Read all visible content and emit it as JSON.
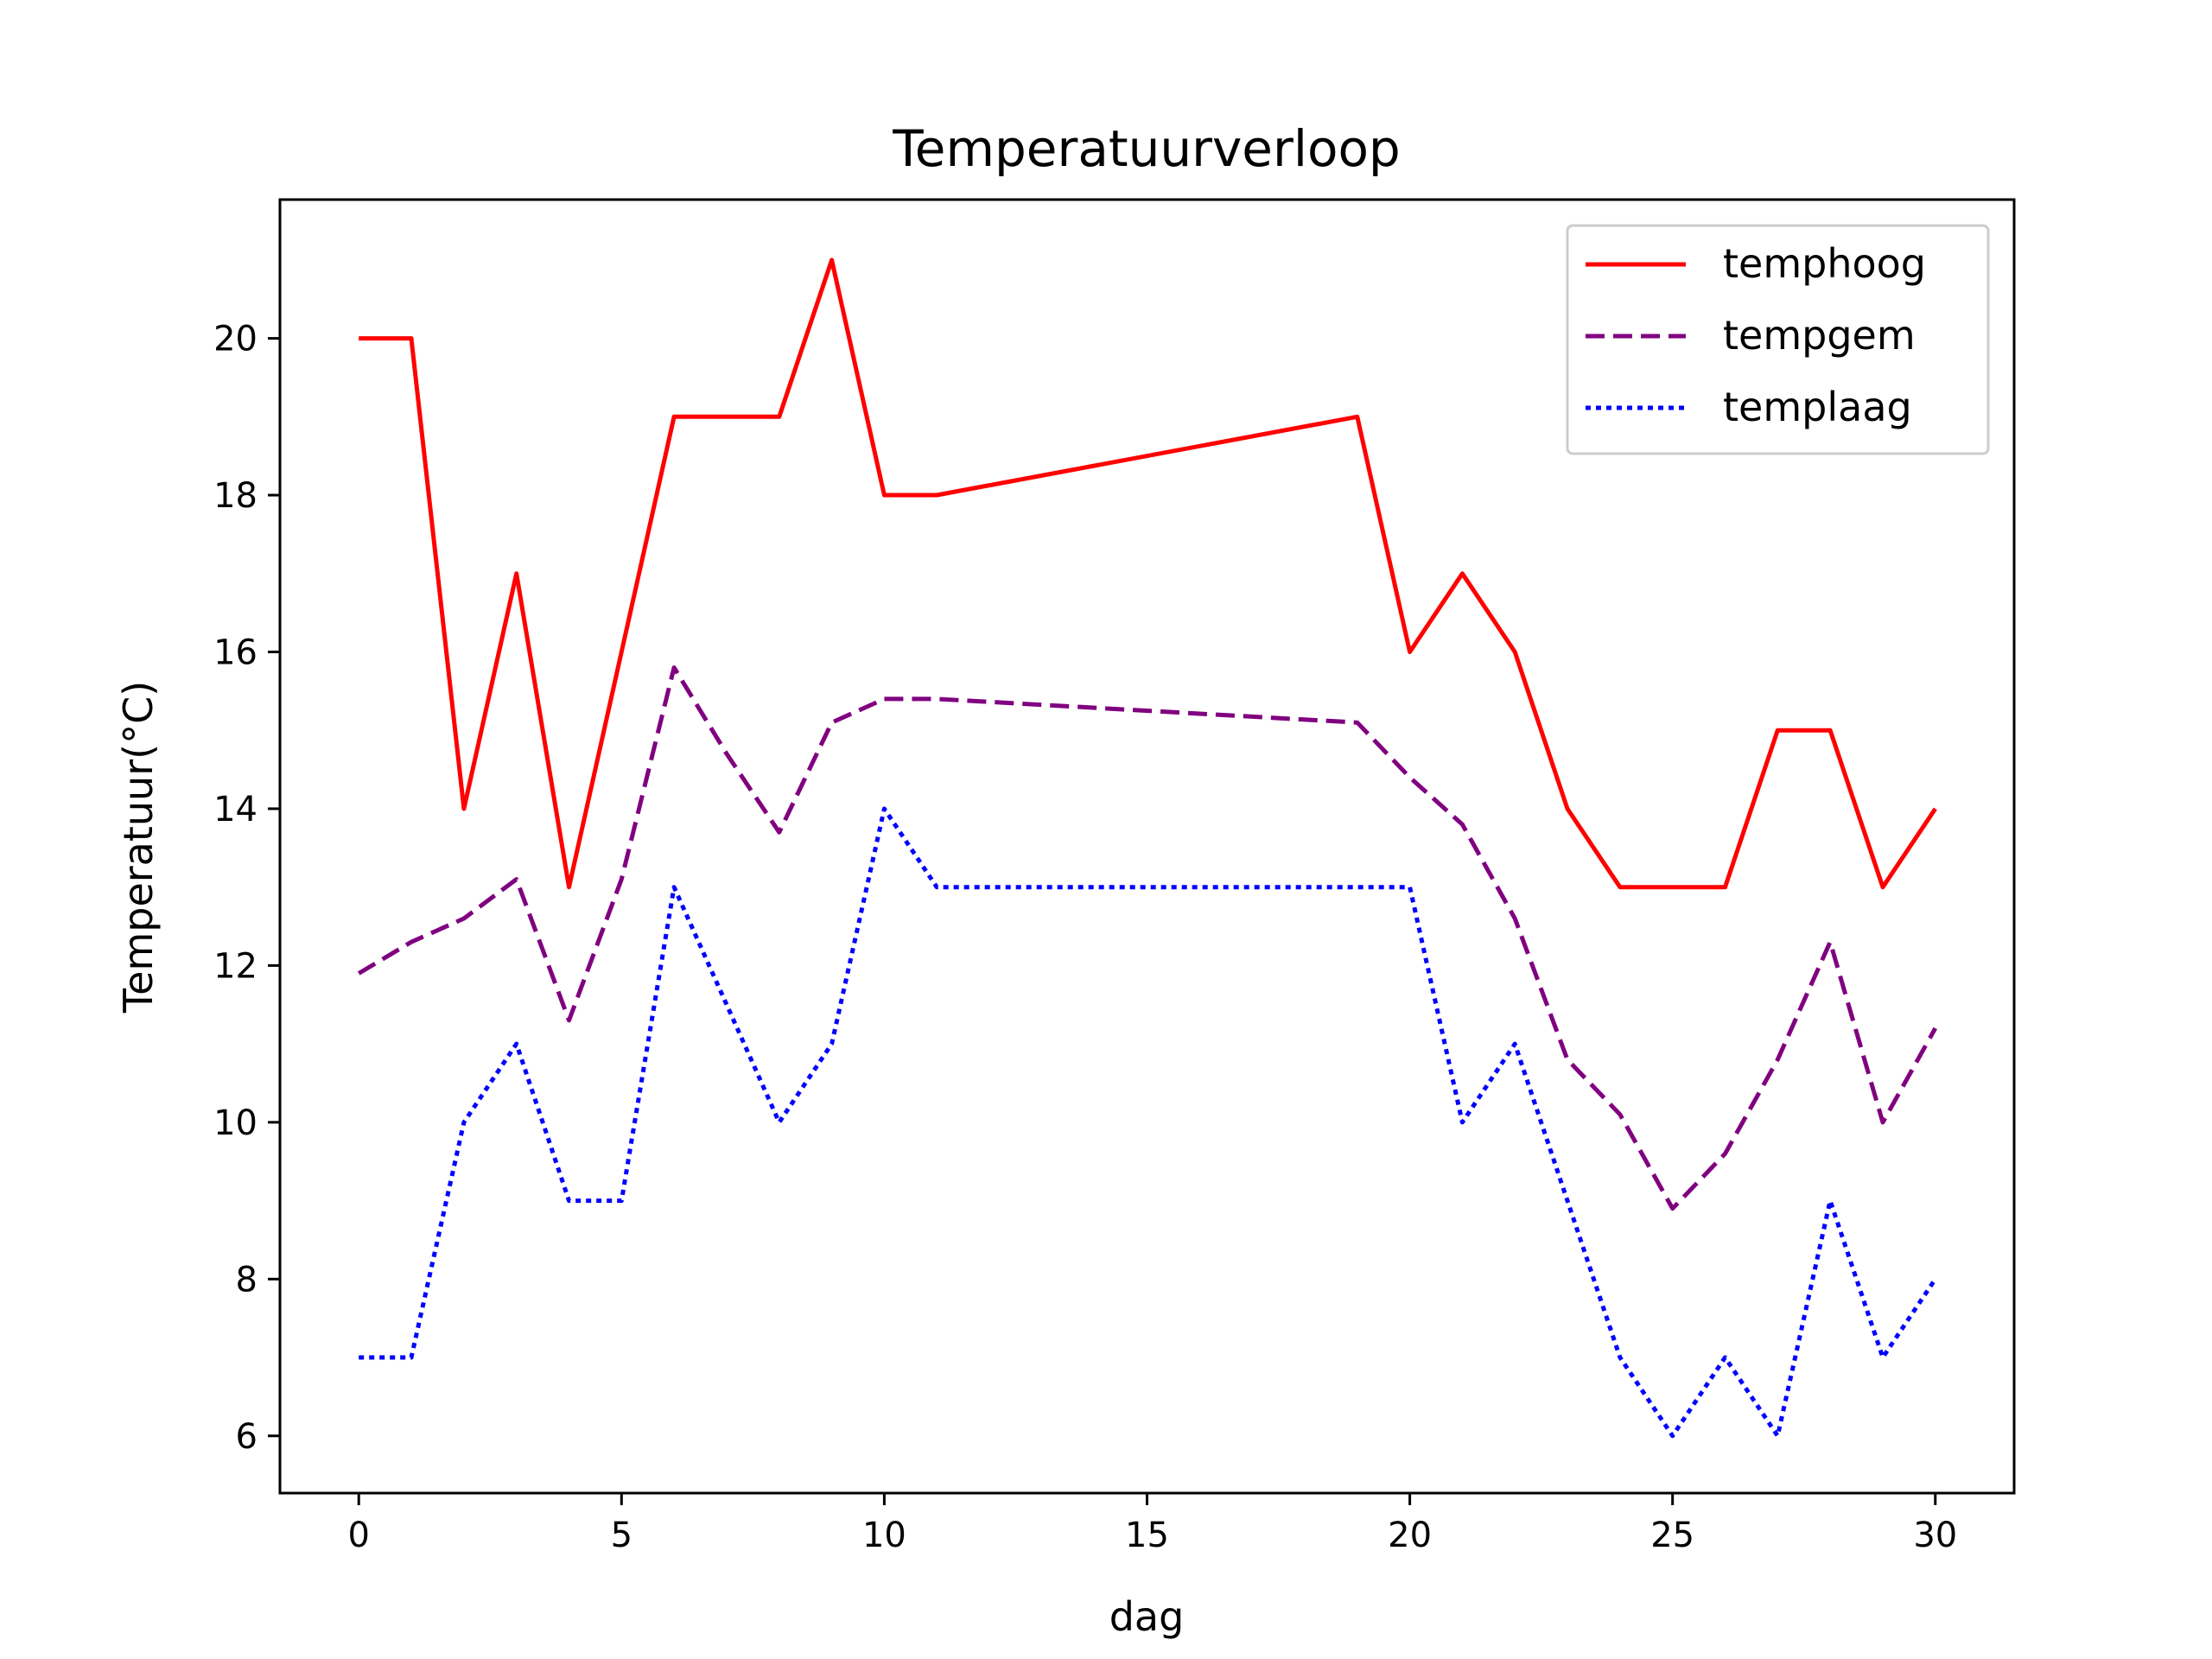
{
  "chart_data": {
    "type": "line",
    "title": "Temperatuurverloop",
    "xlabel": "dag",
    "ylabel": "Temperatuur(°C)",
    "xlim": [
      -1.5,
      31.5
    ],
    "ylim": [
      5.27,
      21.77
    ],
    "xticks": [
      0,
      5,
      10,
      15,
      20,
      25,
      30
    ],
    "yticks": [
      6,
      8,
      10,
      12,
      14,
      16,
      18,
      20
    ],
    "grid": false,
    "legend_position": "top-right",
    "x": [
      0,
      1,
      2,
      3,
      4,
      5,
      6,
      7,
      8,
      9,
      10,
      11,
      19,
      20,
      21,
      22,
      23,
      24,
      25,
      26,
      27,
      28,
      29,
      30
    ],
    "series": [
      {
        "name": "temphoog",
        "color": "#ff0000",
        "style": "solid",
        "values": [
          20,
          20,
          14,
          17,
          13,
          16,
          19,
          19,
          19,
          21,
          18,
          18,
          19,
          16,
          17,
          16,
          14,
          13,
          13,
          13,
          15,
          15,
          13,
          14
        ]
      },
      {
        "name": "tempgem",
        "color": "#800080",
        "style": "dashed",
        "values": [
          11.9,
          12.3,
          12.6,
          13.1,
          11.3,
          13.1,
          15.8,
          14.7,
          13.7,
          15.1,
          15.4,
          15.4,
          15.1,
          14.4,
          13.8,
          12.6,
          10.8,
          10.1,
          8.9,
          9.6,
          10.8,
          12.3,
          10.0,
          11.2
        ]
      },
      {
        "name": "templaag",
        "color": "#0000ff",
        "style": "dotted",
        "values": [
          7,
          7,
          10,
          11,
          9,
          9,
          13,
          11.5,
          10,
          11,
          14,
          13,
          13,
          13,
          10,
          11,
          9,
          7,
          6,
          7,
          6,
          9,
          7,
          8
        ]
      }
    ]
  }
}
